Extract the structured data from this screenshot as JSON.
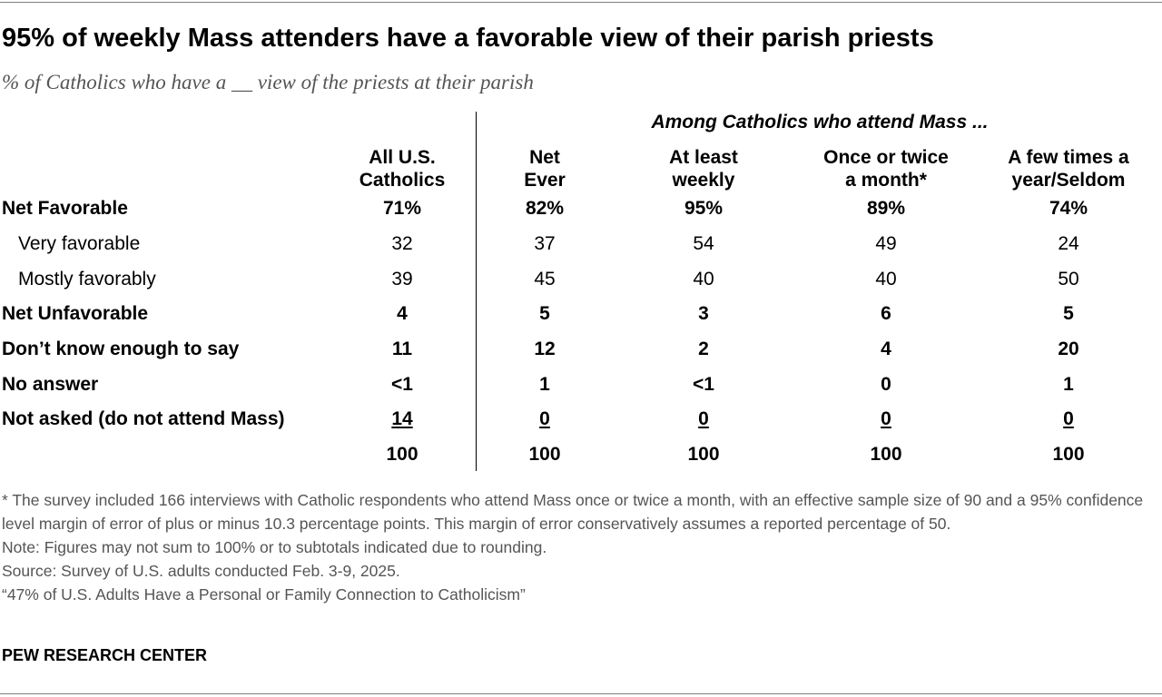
{
  "title": "95% of weekly Mass attenders have a favorable view of their parish priests",
  "subtitle": "% of Catholics who have a __ view of the priests at their parish",
  "chart_data": {
    "type": "table",
    "group_label": "Among Catholics who attend Mass ...",
    "columns": [
      {
        "line1": "All U.S.",
        "line2": "Catholics"
      },
      {
        "line1": "Net",
        "line2": "Ever"
      },
      {
        "line1": "At least",
        "line2": "weekly"
      },
      {
        "line1": "Once or twice",
        "line2": "a month*"
      },
      {
        "line1": "A few times a",
        "line2": "year/Seldom"
      }
    ],
    "rows": [
      {
        "label": "Net Favorable",
        "bold": true,
        "indent": false,
        "values": [
          "71%",
          "82%",
          "95%",
          "89%",
          "74%"
        ]
      },
      {
        "label": "Very favorable",
        "bold": false,
        "indent": true,
        "values": [
          "32",
          "37",
          "54",
          "49",
          "24"
        ]
      },
      {
        "label": "Mostly favorably",
        "bold": false,
        "indent": true,
        "values": [
          "39",
          "45",
          "40",
          "40",
          "50"
        ]
      },
      {
        "label": "Net Unfavorable",
        "bold": true,
        "indent": false,
        "values": [
          "4",
          "5",
          "3",
          "6",
          "5"
        ]
      },
      {
        "label": "Don’t know enough to say",
        "bold": true,
        "indent": false,
        "values": [
          "11",
          "12",
          "2",
          "4",
          "20"
        ]
      },
      {
        "label": "No answer",
        "bold": true,
        "indent": false,
        "values": [
          "<1",
          "1",
          "<1",
          "0",
          "1"
        ]
      },
      {
        "label": "Not asked (do not attend Mass)",
        "bold": true,
        "indent": false,
        "underline": true,
        "values": [
          "14",
          "0",
          "0",
          "0",
          "0"
        ]
      },
      {
        "label": "",
        "bold": true,
        "indent": false,
        "values": [
          "100",
          "100",
          "100",
          "100",
          "100"
        ]
      }
    ]
  },
  "notes": [
    "* The survey included 166 interviews with Catholic respondents who attend Mass once or twice a month, with an effective sample size of 90 and a 95% confidence level margin of error of plus or minus 10.3 percentage points. This margin of error conservatively assumes a reported percentage of 50.",
    "Note: Figures may not sum to 100% or to subtotals indicated due to rounding.",
    "Source: Survey of U.S. adults conducted Feb. 3-9, 2025.",
    "“47% of U.S. Adults Have a Personal or Family Connection to Catholicism”"
  ],
  "brand": "PEW RESEARCH CENTER"
}
